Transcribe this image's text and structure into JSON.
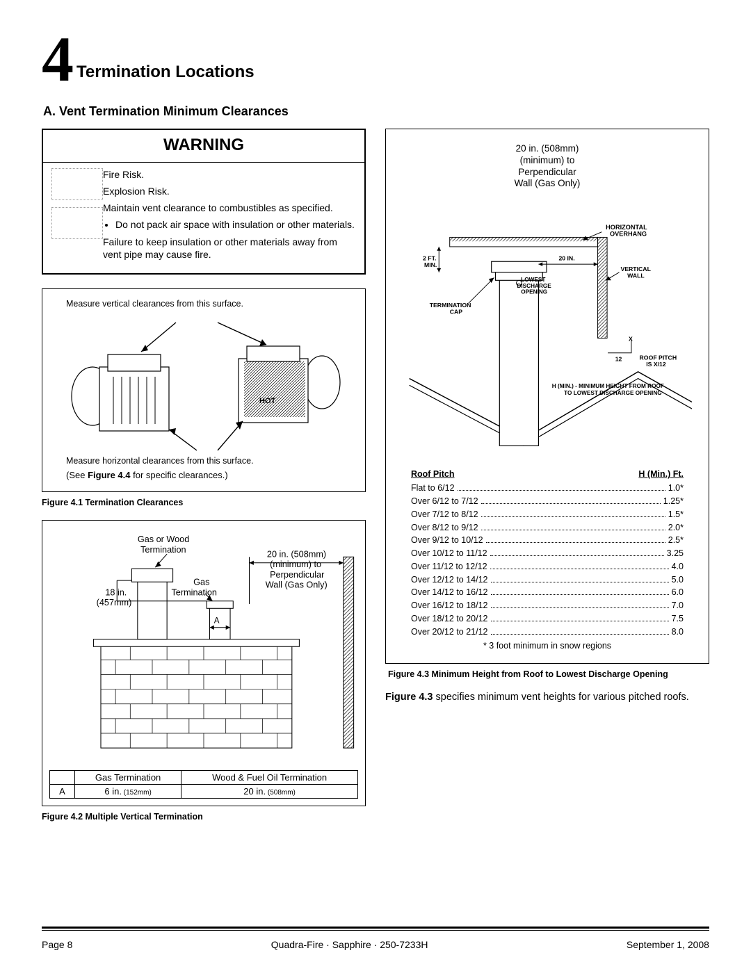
{
  "chapter": {
    "number": "4",
    "title": "Termination Locations"
  },
  "sectionA": "A. Vent Termination Minimum Clearances",
  "warning": {
    "heading": "WARNING",
    "icon_fire": "fire-icon",
    "icon_insulation": "insulation-icon",
    "lines": [
      "Fire Risk.",
      "Explosion Risk.",
      "Maintain vent clearance to combustibles as specified.",
      "Do not pack air space with insulation or other materials.",
      "Failure to keep insulation or other materials away from vent pipe may cause fire."
    ]
  },
  "fig41": {
    "top_label": "Measure vertical clearances from this surface.",
    "bottom_label": "Measure horizontal clearances from this surface.",
    "see": "(See Figure 4.4 for specific clearances.)",
    "caption": "Figure 4.1  Termination Clearances"
  },
  "fig42": {
    "labels": {
      "gas_wood": "Gas or Wood\nTermination",
      "twenty_in": "20 in. (508mm)\n(minimum) to\nPerpendicular\nWall (Gas Only)",
      "gas_term": "Gas\nTermination",
      "eighteen": "18 in.\n(457mm)",
      "a_arrow": "A"
    },
    "table": {
      "h1": "Gas Termination",
      "h2": "Wood & Fuel Oil Termination",
      "a": "A",
      "v1": "6 in.",
      "v1mm": " (152mm)",
      "v2": "20 in.",
      "v2mm": " (508mm)"
    },
    "caption": "Figure 4.2   Multiple Vertical Termination"
  },
  "fig43": {
    "top_note": "20 in. (508mm)\n(minimum) to\nPerpendicular\nWall (Gas Only)",
    "dia_labels": {
      "horiz_overhang": "HORIZONTAL\nOVERHANG",
      "two_ft": "2 FT.\nMIN.",
      "twenty_in": "20 IN.",
      "vertical_wall": "VERTICAL\nWALL",
      "lowest_discharge": "LOWEST\nDISCHARGE\nOPENING",
      "term_cap": "TERMINATION\nCAP",
      "x12": "X\n12",
      "roof_pitch": "ROOF PITCH\nIS X/12",
      "hmin": "H (MIN.) - MINIMUM HEIGHT FROM ROOF\nTO LOWEST DISCHARGE OPENING"
    },
    "table_head_left": "Roof Pitch",
    "table_head_right": "H (Min.)  Ft.",
    "rows": [
      {
        "label": "Flat to 6/12",
        "value": "1.0*"
      },
      {
        "label": "Over 6/12 to 7/12",
        "value": "1.25*"
      },
      {
        "label": "Over 7/12 to 8/12",
        "value": "1.5*"
      },
      {
        "label": "Over 8/12 to 9/12",
        "value": "2.0*"
      },
      {
        "label": "Over 9/12 to 10/12",
        "value": "2.5*"
      },
      {
        "label": "Over 10/12 to 11/12",
        "value": "3.25"
      },
      {
        "label": "Over 11/12 to 12/12",
        "value": "4.0"
      },
      {
        "label": "Over 12/12 to 14/12",
        "value": "5.0"
      },
      {
        "label": "Over 14/12 to 16/12",
        "value": "6.0"
      },
      {
        "label": "Over 16/12 to 18/12",
        "value": "7.0"
      },
      {
        "label": "Over 18/12 to 20/12",
        "value": "7.5"
      },
      {
        "label": "Over 20/12 to 21/12",
        "value": "8.0"
      }
    ],
    "footnote": "* 3 foot minimum in snow regions",
    "caption": "Figure 4.3   Minimum Height from Roof to Lowest Discharge Opening",
    "body": "Figure 4.3 specifies minimum vent heights for various pitched roofs."
  },
  "footer": {
    "page": "Page  8",
    "center": "Quadra-Fire · Sapphire · 250-7233H",
    "date": "September 1, 2008"
  },
  "colors": {
    "text": "#000000",
    "bg": "#ffffff",
    "rule": "#000000"
  }
}
